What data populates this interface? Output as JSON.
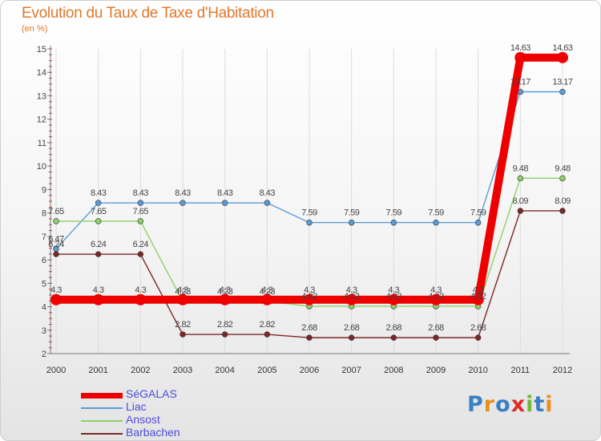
{
  "title": "Evolution du Taux de Taxe d'Habitation",
  "subtitle": "(en %)",
  "logo": {
    "letters": [
      "P",
      "r",
      "o",
      "x",
      "i",
      "t",
      "i"
    ],
    "colors": [
      "#3b7fc4",
      "#e8901e",
      "#3b7fc4",
      "#e02a2a",
      "#6fb83a",
      "#3b7fc4",
      "#e8901e"
    ]
  },
  "chart_data": {
    "type": "line",
    "title": "Evolution du Taux de Taxe d'Habitation",
    "ylabel": "(en %)",
    "xlabel": "",
    "x": [
      "2000",
      "2001",
      "2002",
      "2003",
      "2004",
      "2005",
      "2006",
      "2007",
      "2008",
      "2009",
      "2010",
      "2011",
      "2012"
    ],
    "ylim": [
      2,
      15
    ],
    "yticks": [
      "2",
      "3",
      "4",
      "5",
      "6",
      "7",
      "8",
      "9",
      "10",
      "11",
      "12",
      "13",
      "14",
      "15"
    ],
    "grid": "vertical",
    "legend": "bottom-left",
    "series": [
      {
        "name": "Liac",
        "color": "#5b9bd5",
        "values": [
          6.47,
          8.43,
          8.43,
          8.43,
          8.43,
          8.43,
          7.59,
          7.59,
          7.59,
          7.59,
          7.59,
          13.17,
          13.17
        ],
        "labels": [
          "6.47",
          "8.43",
          "8.43",
          "8.43",
          "8.43",
          "8.43",
          "7.59",
          "7.59",
          "7.59",
          "7.59",
          "7.59",
          "13.17",
          "13.17"
        ]
      },
      {
        "name": "Ansost",
        "color": "#8fd068",
        "values": [
          7.65,
          7.65,
          7.65,
          4.23,
          4.23,
          4.23,
          4.02,
          4.02,
          4.02,
          4.02,
          4.02,
          9.48,
          9.48
        ],
        "labels": [
          "7.65",
          "7.65",
          "7.65",
          "4.23",
          "4.23",
          "4.23",
          "4.02",
          "4.02",
          "4.02",
          "4.02",
          "4.02",
          "9.48",
          "9.48"
        ]
      },
      {
        "name": "Barbachen",
        "color": "#7a2828",
        "values": [
          6.24,
          6.24,
          6.24,
          2.82,
          2.82,
          2.82,
          2.68,
          2.68,
          2.68,
          2.68,
          2.68,
          8.09,
          8.09
        ],
        "labels": [
          "6.24",
          "6.24",
          "6.24",
          "2.82",
          "2.82",
          "2.82",
          "2.68",
          "2.68",
          "2.68",
          "2.68",
          "2.68",
          "8.09",
          "8.09"
        ]
      },
      {
        "name": "SéGALAS",
        "color": "#ee0000",
        "values": [
          4.3,
          4.3,
          4.3,
          4.3,
          4.3,
          4.3,
          4.3,
          4.3,
          4.3,
          4.3,
          4.3,
          14.63,
          14.63
        ],
        "labels": [
          "4.3",
          "4.3",
          "4.3",
          "4.3",
          "4.3",
          "4.3",
          "4.3",
          "4.3",
          "4.3",
          "4.3",
          "4.3",
          "14.63",
          "14.63"
        ]
      }
    ]
  }
}
